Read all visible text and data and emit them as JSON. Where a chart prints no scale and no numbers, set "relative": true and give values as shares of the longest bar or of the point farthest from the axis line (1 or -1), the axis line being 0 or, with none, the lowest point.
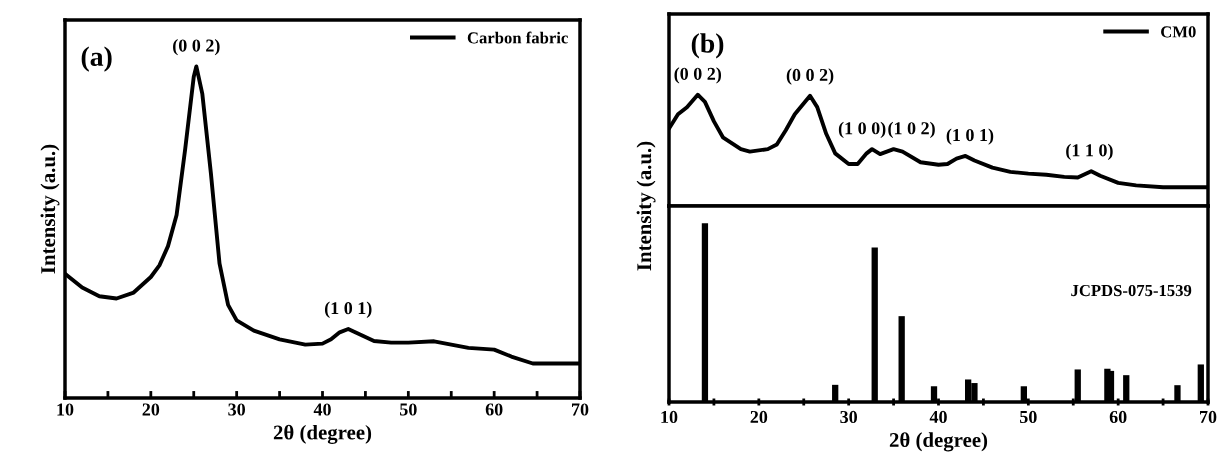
{
  "chart_data": [
    {
      "type": "line",
      "relative": true,
      "xlabel": "2θ (degree)",
      "ylabel": "Intensity (a.u.)",
      "xlim": [
        10,
        70
      ],
      "xticks": [
        10,
        {
          "value": 15,
          "label": null
        },
        20,
        {
          "value": 25,
          "label": null
        },
        30,
        {
          "value": 35,
          "label": null
        },
        40,
        {
          "value": 45,
          "label": null
        },
        50,
        {
          "value": 55,
          "label": null
        },
        60,
        {
          "value": 65,
          "label": null
        },
        70
      ],
      "legend": "top right",
      "grid": false,
      "marker": "none",
      "line_style": "solid",
      "x": [
        10,
        12,
        14,
        16,
        18,
        20,
        21,
        22,
        23,
        24,
        25,
        25.3,
        26,
        27,
        28,
        29,
        30,
        32,
        35,
        38,
        40,
        41,
        42,
        43,
        44,
        46,
        48,
        50,
        53,
        55,
        57,
        60,
        62,
        64.5,
        70
      ],
      "series": [
        {
          "name": "Carbon fabric",
          "color": "#000000",
          "values": [
            0.375,
            0.333,
            0.307,
            0.3,
            0.318,
            0.365,
            0.4,
            0.458,
            0.552,
            0.75,
            0.969,
            1.0,
            0.917,
            0.677,
            0.406,
            0.281,
            0.234,
            0.203,
            0.177,
            0.161,
            0.164,
            0.177,
            0.198,
            0.208,
            0.196,
            0.172,
            0.167,
            0.167,
            0.171,
            0.161,
            0.151,
            0.146,
            0.125,
            0.104,
            0.104
          ]
        }
      ],
      "annotations": [
        "(a)",
        {
          "text": "(0 0 2)",
          "x": 25.3,
          "y": 1.0
        },
        {
          "text": "(1 0 1)",
          "x": 43,
          "y": 0.208
        }
      ]
    },
    {
      "type": "line",
      "relative": true,
      "xlim": [
        10,
        70
      ],
      "tick_labels": false,
      "legend": "top right",
      "grid": false,
      "marker": "none",
      "line_style": "solid",
      "x": [
        10,
        11,
        12,
        13.2,
        14,
        15,
        16,
        18,
        19,
        21,
        22,
        23,
        24,
        25.7,
        26.5,
        27.5,
        28.5,
        30,
        31,
        32,
        32.6,
        33.5,
        35,
        36,
        38,
        40,
        41,
        42,
        43,
        44,
        46,
        48,
        50,
        52,
        54,
        55.5,
        57,
        58,
        60,
        62,
        65,
        70
      ],
      "series": [
        {
          "name": "CM0",
          "color": "#000000",
          "values": [
            0.696,
            0.824,
            0.888,
            1.0,
            0.936,
            0.76,
            0.617,
            0.511,
            0.489,
            0.511,
            0.553,
            0.681,
            0.824,
            0.99,
            0.888,
            0.649,
            0.473,
            0.377,
            0.377,
            0.473,
            0.511,
            0.466,
            0.511,
            0.489,
            0.393,
            0.371,
            0.377,
            0.425,
            0.45,
            0.409,
            0.345,
            0.307,
            0.291,
            0.281,
            0.262,
            0.256,
            0.313,
            0.272,
            0.208,
            0.185,
            0.169,
            0.169
          ]
        }
      ],
      "annotations": [
        "(b)",
        {
          "text": "(0 0 2)",
          "x": 13.2,
          "y": 1.0
        },
        {
          "text": "(0 0 2)",
          "x": 25.7,
          "y": 0.99
        },
        {
          "text": "(1 0 0)",
          "x": 31.5,
          "y": 0.511
        },
        {
          "text": "(1 0 2)",
          "x": 37,
          "y": 0.511
        },
        {
          "text": "(1 0 1)",
          "x": 43.5,
          "y": 0.45
        },
        {
          "text": "(1 1 0)",
          "x": 56.8,
          "y": 0.313
        }
      ]
    },
    {
      "type": "bar",
      "relative": true,
      "xlabel": "2θ (degree)",
      "ylabel": "Intensity (a.u.)",
      "xlim": [
        10,
        70
      ],
      "xticks": [
        10,
        {
          "value": 15,
          "label": null
        },
        20,
        {
          "value": 25,
          "label": null
        },
        30,
        {
          "value": 35,
          "label": null
        },
        40,
        {
          "value": 45,
          "label": null
        },
        50,
        {
          "value": 55,
          "label": null
        },
        60,
        {
          "value": 65,
          "label": null
        },
        70
      ],
      "tick_labels": "x",
      "grid": false,
      "x": [
        14.0,
        28.5,
        32.9,
        35.9,
        39.5,
        43.3,
        44.0,
        49.5,
        55.5,
        58.8,
        59.2,
        60.9,
        66.6,
        69.2
      ],
      "series": [
        {
          "color": "#000000",
          "values": [
            1.0,
            0.096,
            0.864,
            0.48,
            0.088,
            0.126,
            0.106,
            0.088,
            0.182,
            0.186,
            0.174,
            0.15,
            0.094,
            0.21
          ]
        }
      ],
      "annotations": [
        "JCPDS-075-1539"
      ]
    }
  ]
}
